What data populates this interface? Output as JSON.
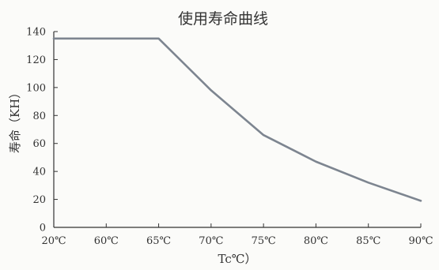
{
  "chart_data": {
    "type": "line",
    "title": "使用寿命曲线",
    "xlabel": "Tc℃）",
    "ylabel": "寿命（KH）",
    "categories": [
      "20℃",
      "60℃",
      "65℃",
      "70℃",
      "75℃",
      "80℃",
      "85℃",
      "90℃"
    ],
    "yticks": [
      "0",
      "20",
      "40",
      "60",
      "80",
      "100",
      "120",
      "140"
    ],
    "ylim": [
      0,
      140
    ],
    "grid": false,
    "colors": {
      "line": "#7d8590",
      "axis": "#333333"
    },
    "series": [
      {
        "values": [
          135,
          135,
          135,
          98,
          66,
          47,
          32,
          19
        ]
      }
    ]
  }
}
